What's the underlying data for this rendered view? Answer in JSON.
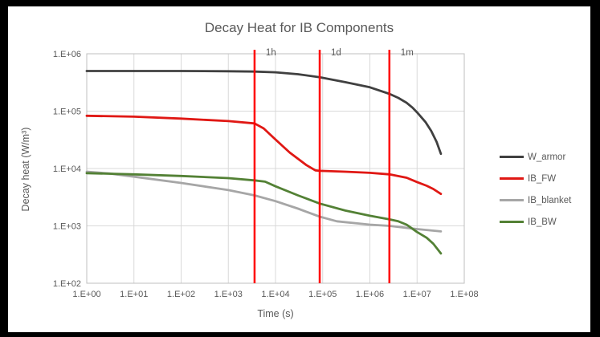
{
  "chart_data": {
    "type": "line",
    "title": "Decay Heat for IB Components",
    "xlabel": "Time (s)",
    "ylabel": "Decay heat (W/m³)",
    "x_scale": "log",
    "y_scale": "log",
    "x_log_range": [
      0,
      8
    ],
    "y_log_range": [
      2,
      6
    ],
    "x_ticks": [
      "1.E+00",
      "1.E+01",
      "1.E+02",
      "1.E+03",
      "1.E+04",
      "1.E+05",
      "1.E+06",
      "1.E+07",
      "1.E+08"
    ],
    "y_ticks": [
      "1.E+06",
      "1.E+05",
      "1.E+04",
      "1.E+03",
      "1.E+02"
    ],
    "legend_position": "right",
    "grid": true,
    "series": [
      {
        "name": "W_armor",
        "color": "#404040",
        "points": [
          [
            1,
            500000
          ],
          [
            10,
            500000
          ],
          [
            100,
            500000
          ],
          [
            1000,
            495000
          ],
          [
            3600,
            490000
          ],
          [
            10000,
            475000
          ],
          [
            30000,
            440000
          ],
          [
            86400,
            390000
          ],
          [
            300000,
            320000
          ],
          [
            1000000,
            260000
          ],
          [
            2600000,
            200000
          ],
          [
            4000000,
            170000
          ],
          [
            6000000,
            140000
          ],
          [
            8000000,
            115000
          ],
          [
            10000000,
            95000
          ],
          [
            15000000,
            65000
          ],
          [
            20000000,
            45000
          ],
          [
            26000000,
            29000
          ],
          [
            32000000,
            18000
          ]
        ]
      },
      {
        "name": "IB_FW",
        "color": "#E01814",
        "points": [
          [
            1,
            83000
          ],
          [
            10,
            80000
          ],
          [
            100,
            74000
          ],
          [
            1000,
            67000
          ],
          [
            3600,
            61000
          ],
          [
            5600,
            50000
          ],
          [
            10000,
            32000
          ],
          [
            20000,
            19000
          ],
          [
            45000,
            11500
          ],
          [
            70000,
            9300
          ],
          [
            86400,
            9100
          ],
          [
            300000,
            8800
          ],
          [
            1000000,
            8400
          ],
          [
            2600000,
            7900
          ],
          [
            6000000,
            6900
          ],
          [
            10000000,
            5800
          ],
          [
            16000000,
            5000
          ],
          [
            22000000,
            4400
          ],
          [
            32000000,
            3600
          ]
        ]
      },
      {
        "name": "IB_blanket",
        "color": "#A6A6A6",
        "points": [
          [
            1,
            8800
          ],
          [
            3,
            8200
          ],
          [
            10,
            7200
          ],
          [
            100,
            5600
          ],
          [
            1000,
            4200
          ],
          [
            3600,
            3400
          ],
          [
            10000,
            2700
          ],
          [
            30000,
            2000
          ],
          [
            86400,
            1450
          ],
          [
            200000,
            1200
          ],
          [
            1000000,
            1050
          ],
          [
            2600000,
            1000
          ],
          [
            10000000,
            880
          ],
          [
            32000000,
            800
          ]
        ]
      },
      {
        "name": "IB_BW",
        "color": "#538135",
        "points": [
          [
            1,
            8300
          ],
          [
            10,
            7900
          ],
          [
            100,
            7400
          ],
          [
            1000,
            6800
          ],
          [
            3600,
            6200
          ],
          [
            6000,
            5900
          ],
          [
            10000,
            4900
          ],
          [
            30000,
            3400
          ],
          [
            86400,
            2450
          ],
          [
            300000,
            1850
          ],
          [
            1000000,
            1500
          ],
          [
            2600000,
            1300
          ],
          [
            4000000,
            1200
          ],
          [
            6000000,
            1050
          ],
          [
            10000000,
            780
          ],
          [
            16000000,
            620
          ],
          [
            22000000,
            490
          ],
          [
            32000000,
            330
          ]
        ]
      }
    ],
    "markers": [
      {
        "label": "1h",
        "t": 3600
      },
      {
        "label": "1d",
        "t": 86400
      },
      {
        "label": "1m",
        "t": 2592000
      }
    ],
    "colors": {
      "grid": "#D9D9D9",
      "axis": "#BFBFBF",
      "text": "#595959",
      "marker_line": "#FF0000",
      "background": "#FFFFFF",
      "frame": "#000000"
    }
  }
}
